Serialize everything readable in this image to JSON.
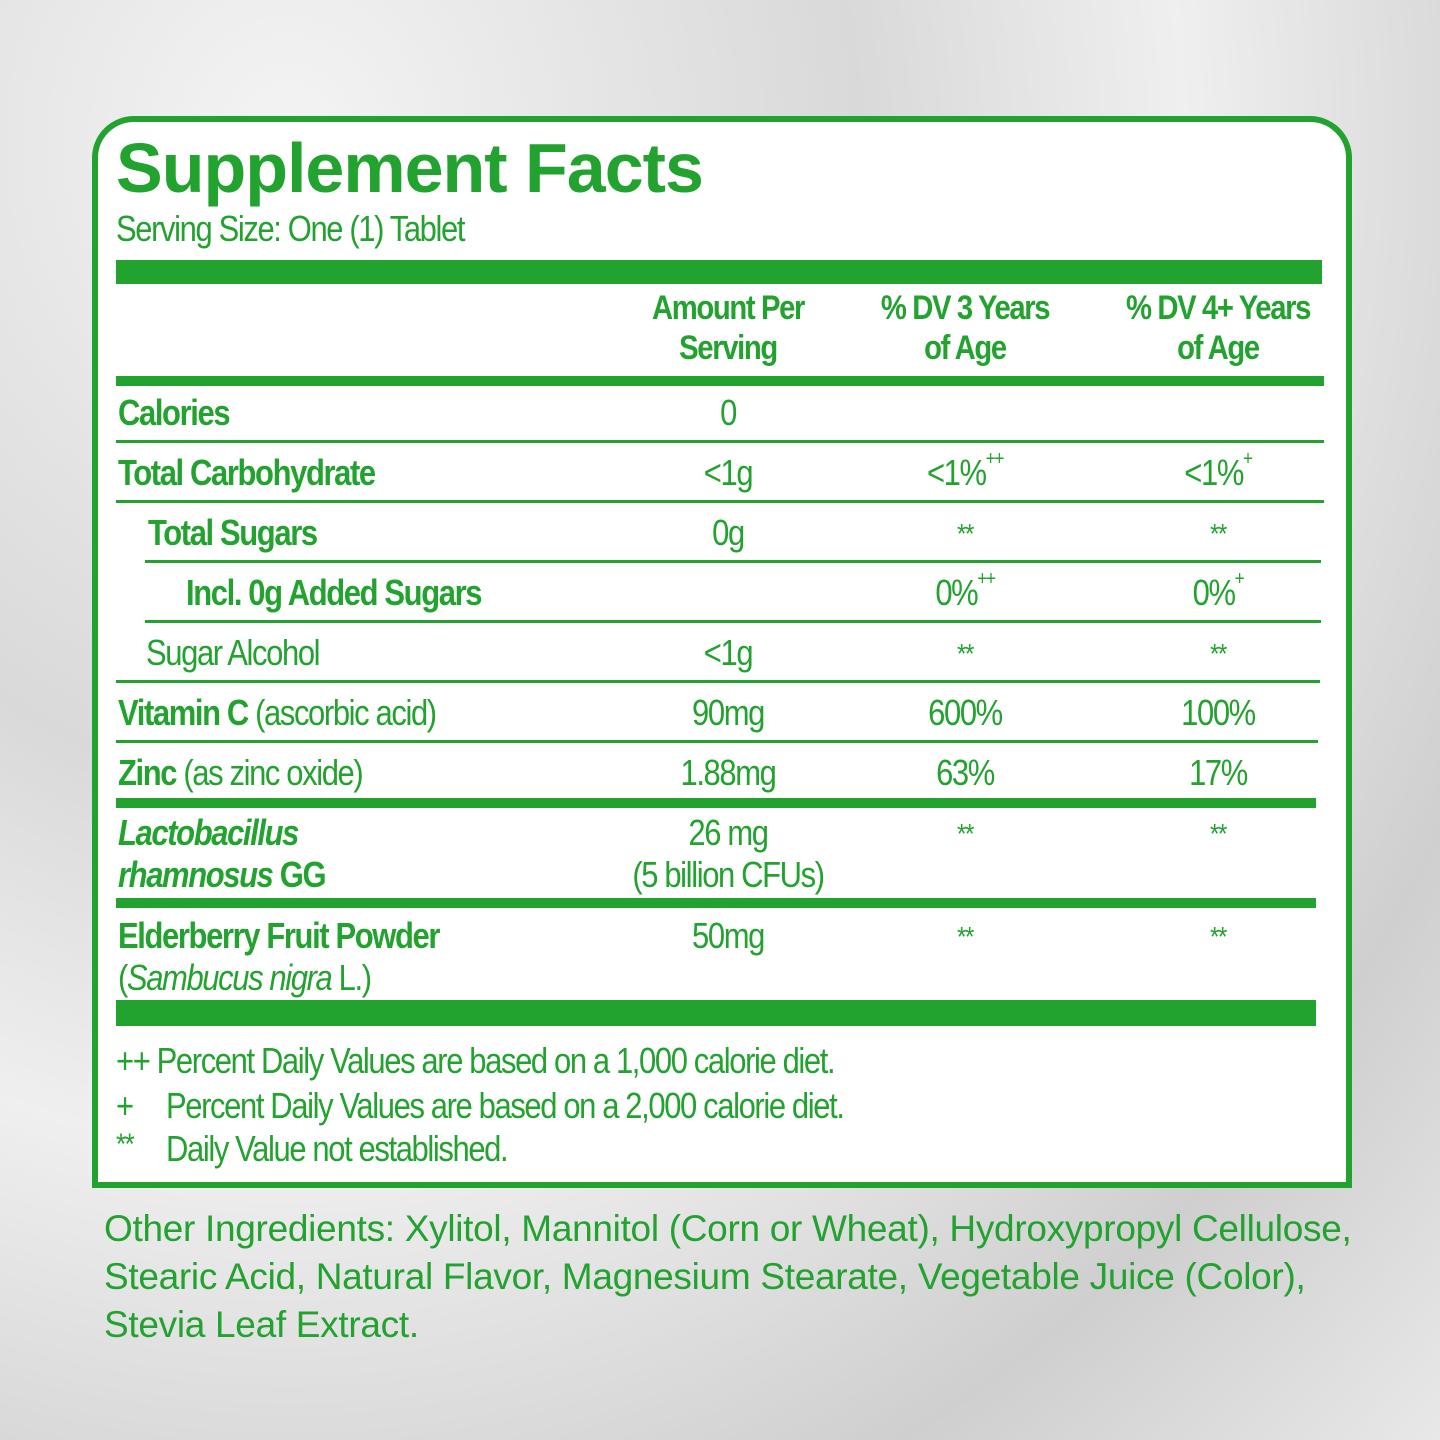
{
  "title": "Supplement Facts",
  "serving_size": "Serving Size: One (1) Tablet",
  "columns": {
    "amount": [
      "Amount Per",
      "Serving"
    ],
    "dv3": [
      "% DV 3 Years",
      "of Age"
    ],
    "dv4": [
      "% DV 4+ Years",
      "of Age"
    ]
  },
  "rows": [
    {
      "name": "Calories",
      "amount": "0",
      "dv3": "",
      "dv4": ""
    },
    {
      "name": "Total Carbohydrate",
      "amount": "<1g",
      "dv3": "<1%",
      "dv3_mark": "++",
      "dv4": "<1%",
      "dv4_mark": "+"
    },
    {
      "name": "Total  Sugars",
      "amount": "0g",
      "dv3": "**",
      "dv4": "**"
    },
    {
      "name": "Incl. 0g Added Sugars",
      "amount": "",
      "dv3": "0%",
      "dv3_mark": "++",
      "dv4": "0%",
      "dv4_mark": "+"
    },
    {
      "name": "Sugar Alcohol",
      "amount": "<1g",
      "dv3": "**",
      "dv4": "**"
    },
    {
      "name": "Vitamin C",
      "detail": "(ascorbic acid)",
      "amount": "90mg",
      "dv3": "600%",
      "dv4": "100%"
    },
    {
      "name": "Zinc",
      "detail": "(as zinc oxide)",
      "amount": "1.88mg",
      "dv3": "63%",
      "dv4": "17%"
    },
    {
      "name_italic": "Lactobacillus",
      "name_italic2": "rhamnosus",
      "name_suffix": "GG",
      "amount": "26 mg",
      "amount2": "(5 billion CFUs)",
      "dv3": "**",
      "dv4": "**"
    },
    {
      "name": "Elderberry Fruit Powder",
      "detail_open": "(",
      "detail_italic": "Sambucus nigra",
      "detail_close": " L.)",
      "amount": "50mg",
      "dv3": "**",
      "dv4": "**"
    }
  ],
  "footnotes": [
    {
      "mark": "++",
      "text": "Percent Daily Values are based on a 1,000 calorie diet."
    },
    {
      "mark": "+",
      "text": "Percent Daily Values are based on a 2,000 calorie diet."
    },
    {
      "mark": "**",
      "text": "Daily Value not established."
    }
  ],
  "other_ingredients": "Other Ingredients: Xylitol, Mannitol (Corn or Wheat), Hydroxypropyl Cellulose, Stearic Acid, Natural Flavor,  Magnesium Stearate, Vegetable Juice (Color), Stevia Leaf Extract.",
  "colors": {
    "brand_green": "#22a22e"
  }
}
